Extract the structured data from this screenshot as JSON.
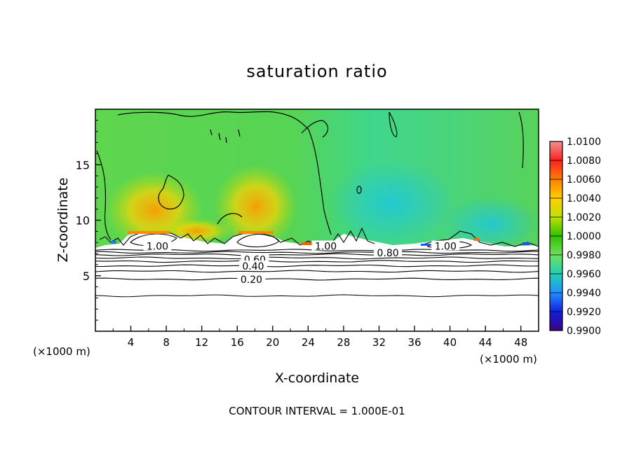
{
  "chart_data": {
    "type": "heatmap",
    "title": "saturation ratio",
    "xlabel": "X-coordinate",
    "ylabel": "Z-coordinate",
    "x_unit_left": "(×1000 m)",
    "x_unit_right": "(×1000 m)",
    "xlim": [
      0,
      50
    ],
    "ylim": [
      0,
      20
    ],
    "x_ticks": [
      4,
      8,
      12,
      16,
      20,
      24,
      28,
      32,
      36,
      40,
      44,
      48
    ],
    "y_ticks": [
      5,
      10,
      15
    ],
    "colorbar": {
      "levels": [
        "1.0100",
        "1.0080",
        "1.0060",
        "1.0040",
        "1.0020",
        "1.0000",
        "0.9980",
        "0.9960",
        "0.9940",
        "0.9920",
        "0.9900"
      ],
      "colors": [
        "#f09090",
        "#ff2020",
        "#ff8000",
        "#ffd000",
        "#c0e000",
        "#30c000",
        "#70e060",
        "#20d0b0",
        "#2090ff",
        "#1020e0",
        "#400080"
      ]
    },
    "contour_labels": [
      {
        "text": "1.00",
        "x": 7.0,
        "y": 7.6
      },
      {
        "text": "1.00",
        "x": 26.0,
        "y": 7.6
      },
      {
        "text": "1.00",
        "x": 39.5,
        "y": 7.6
      },
      {
        "text": "0.80",
        "x": 33.0,
        "y": 7.0
      },
      {
        "text": "0.60",
        "x": 18.0,
        "y": 6.4
      },
      {
        "text": "0.40",
        "x": 17.8,
        "y": 5.8
      },
      {
        "text": "0.20",
        "x": 17.6,
        "y": 4.6
      }
    ],
    "contour_interval_text": "CONTOUR INTERVAL = 1.000E-01"
  }
}
